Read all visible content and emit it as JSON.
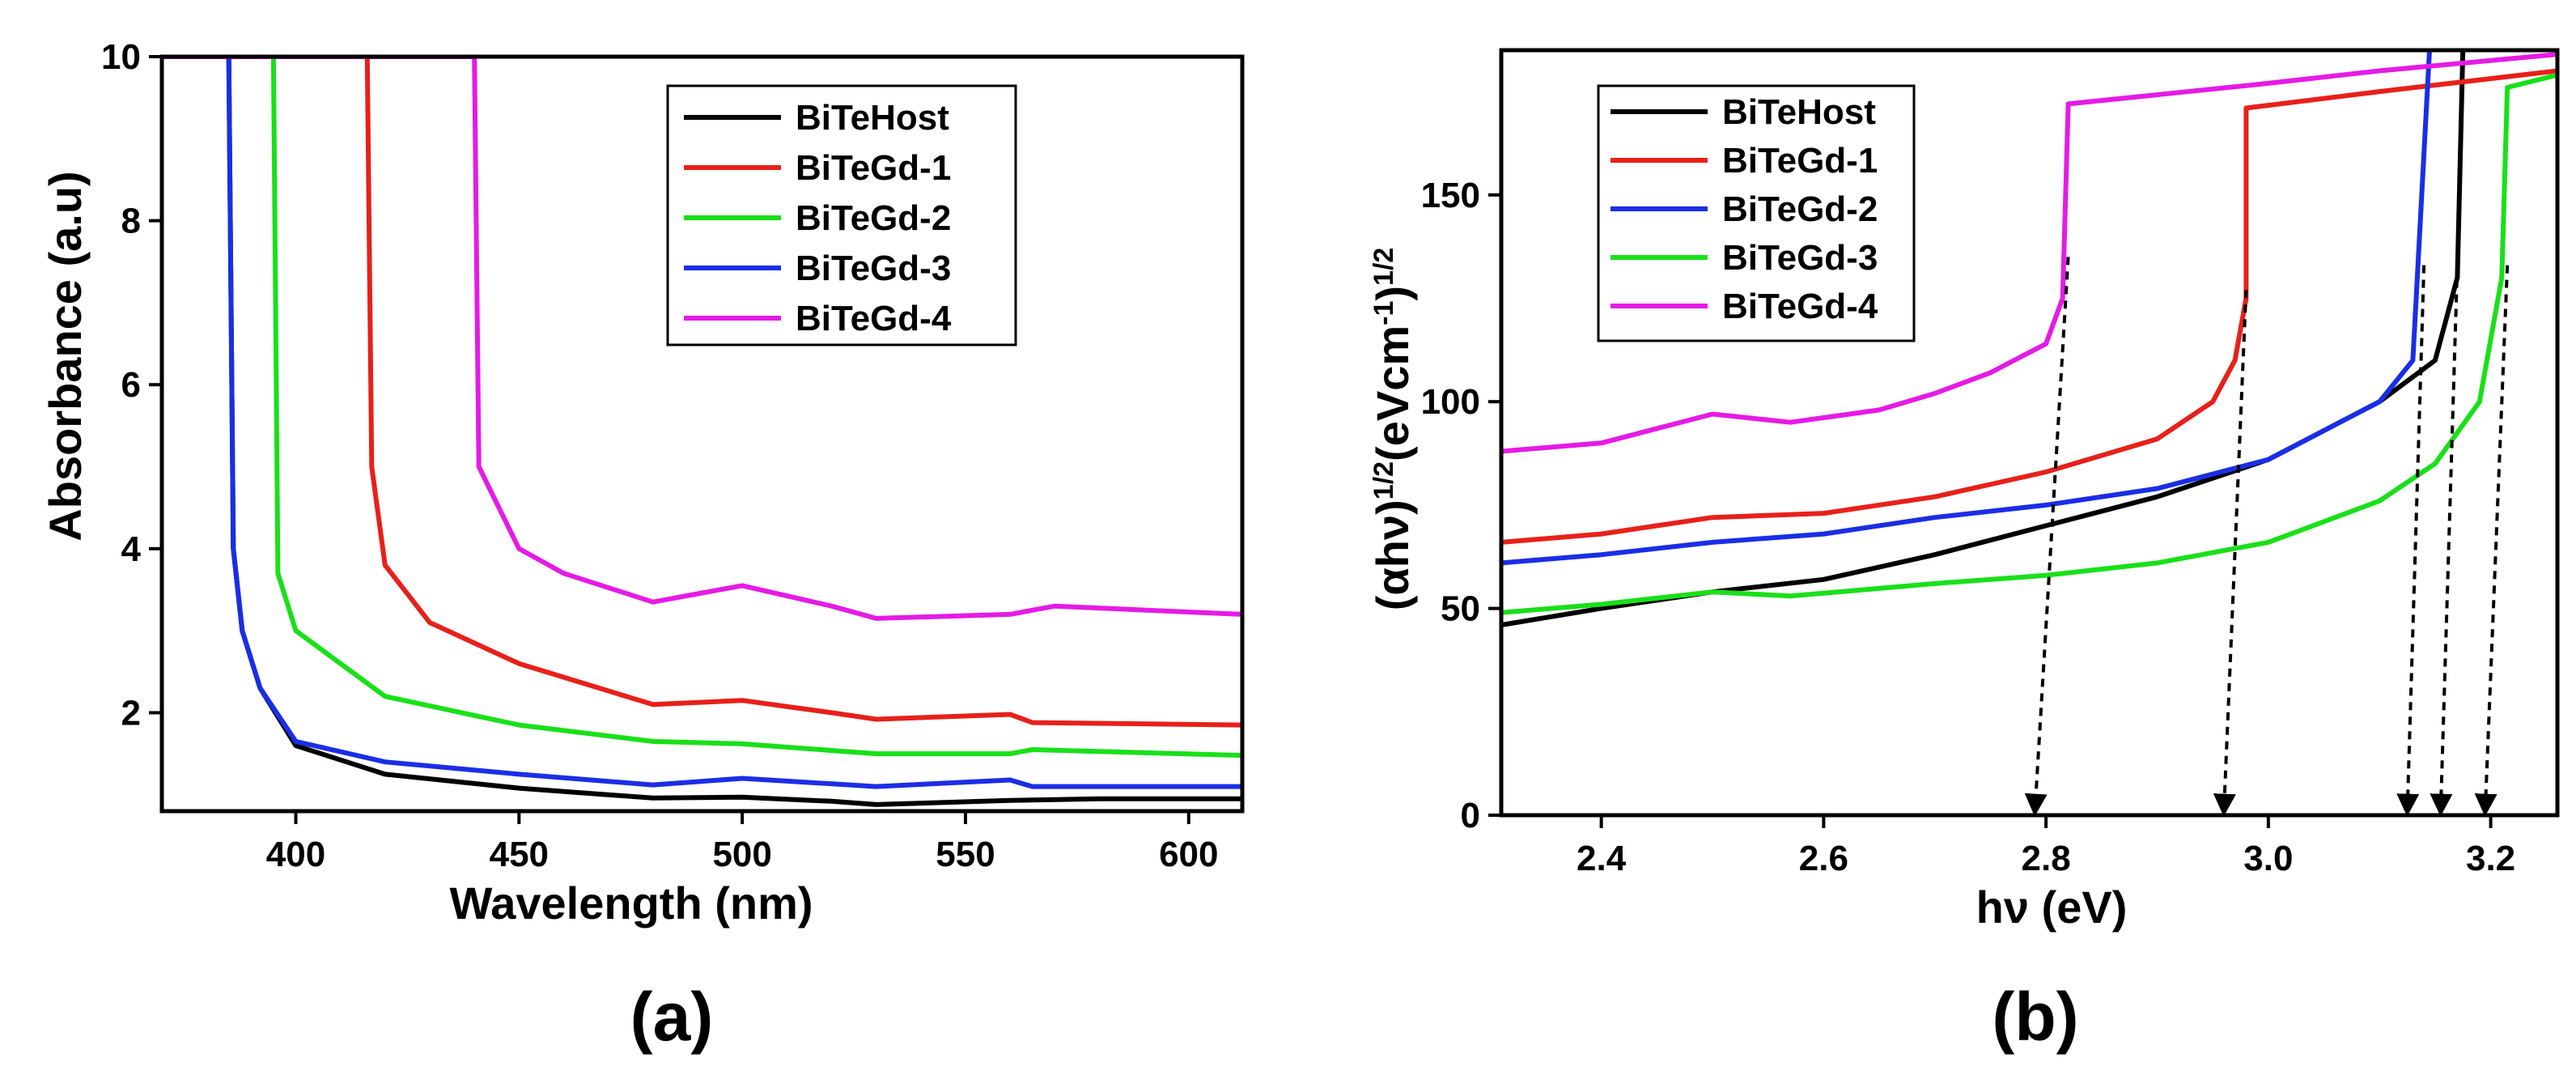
{
  "chart_data": [
    {
      "type": "line",
      "panel_label": "(a)",
      "xlabel": "Wavelength (nm)",
      "ylabel": "Absorbance (a.u)",
      "xlim": [
        370,
        612
      ],
      "ylim": [
        0.8,
        10
      ],
      "x_ticks": [
        400,
        450,
        500,
        550,
        600
      ],
      "y_ticks": [
        2,
        4,
        6,
        8,
        10
      ],
      "legend_position": "top-right",
      "series": [
        {
          "name": "BiTeHost",
          "color": "#000000",
          "points": [
            [
              385,
              10
            ],
            [
              386,
              4
            ],
            [
              388,
              3
            ],
            [
              392,
              2.3
            ],
            [
              400,
              1.6
            ],
            [
              420,
              1.25
            ],
            [
              450,
              1.08
            ],
            [
              480,
              0.96
            ],
            [
              500,
              0.97
            ],
            [
              520,
              0.92
            ],
            [
              530,
              0.88
            ],
            [
              560,
              0.93
            ],
            [
              580,
              0.95
            ],
            [
              612,
              0.95
            ]
          ]
        },
        {
          "name": "BiTeGd-1",
          "color": "#e8201a",
          "points": [
            [
              370,
              10
            ],
            [
              416,
              10
            ],
            [
              417,
              5
            ],
            [
              420,
              3.8
            ],
            [
              430,
              3.1
            ],
            [
              450,
              2.6
            ],
            [
              480,
              2.1
            ],
            [
              500,
              2.15
            ],
            [
              520,
              2.0
            ],
            [
              530,
              1.92
            ],
            [
              560,
              1.98
            ],
            [
              565,
              1.88
            ],
            [
              612,
              1.85
            ]
          ]
        },
        {
          "name": "BiTeGd-2",
          "color": "#19e019",
          "points": [
            [
              370,
              10
            ],
            [
              395,
              10
            ],
            [
              396,
              3.7
            ],
            [
              400,
              3.0
            ],
            [
              420,
              2.2
            ],
            [
              450,
              1.85
            ],
            [
              480,
              1.65
            ],
            [
              500,
              1.62
            ],
            [
              530,
              1.5
            ],
            [
              560,
              1.5
            ],
            [
              565,
              1.55
            ],
            [
              612,
              1.48
            ]
          ]
        },
        {
          "name": "BiTeGd-3",
          "color": "#1a2ee6",
          "points": [
            [
              385,
              10
            ],
            [
              386,
              4
            ],
            [
              388,
              3
            ],
            [
              392,
              2.3
            ],
            [
              400,
              1.65
            ],
            [
              420,
              1.4
            ],
            [
              450,
              1.25
            ],
            [
              480,
              1.12
            ],
            [
              500,
              1.2
            ],
            [
              530,
              1.1
            ],
            [
              560,
              1.18
            ],
            [
              565,
              1.1
            ],
            [
              612,
              1.1
            ]
          ]
        },
        {
          "name": "BiTeGd-4",
          "color": "#e51be5",
          "points": [
            [
              370,
              10
            ],
            [
              440,
              10
            ],
            [
              441,
              5
            ],
            [
              450,
              4.0
            ],
            [
              460,
              3.7
            ],
            [
              480,
              3.35
            ],
            [
              490,
              3.45
            ],
            [
              500,
              3.55
            ],
            [
              520,
              3.3
            ],
            [
              530,
              3.15
            ],
            [
              560,
              3.2
            ],
            [
              570,
              3.3
            ],
            [
              612,
              3.2
            ]
          ]
        }
      ]
    },
    {
      "type": "line",
      "panel_label": "(b)",
      "xlabel": "hν (eV)",
      "ylabel_base": "(αhν)",
      "ylabel_exp1": "1/2",
      "ylabel_mid": "(eVcm",
      "ylabel_exp2": "-1",
      "ylabel_close": ")",
      "ylabel_exp3": "1/2",
      "xlim": [
        2.31,
        3.26
      ],
      "ylim": [
        0,
        185
      ],
      "x_ticks": [
        "2.4",
        "2.6",
        "2.8",
        "3.0",
        "3.2"
      ],
      "y_ticks": [
        "0",
        "50",
        "100",
        "150"
      ],
      "legend_position": "top-left",
      "series": [
        {
          "name": "BiTeHost",
          "color": "#000000",
          "points": [
            [
              2.31,
              46
            ],
            [
              2.4,
              50
            ],
            [
              2.5,
              54
            ],
            [
              2.6,
              57
            ],
            [
              2.7,
              63
            ],
            [
              2.8,
              70
            ],
            [
              2.9,
              77
            ],
            [
              3.0,
              86
            ],
            [
              3.1,
              100
            ],
            [
              3.15,
              110
            ],
            [
              3.17,
              130
            ],
            [
              3.175,
              185
            ]
          ]
        },
        {
          "name": "BiTeGd-1",
          "color": "#e8201a",
          "points": [
            [
              2.31,
              66
            ],
            [
              2.4,
              68
            ],
            [
              2.5,
              72
            ],
            [
              2.6,
              73
            ],
            [
              2.7,
              77
            ],
            [
              2.8,
              83
            ],
            [
              2.9,
              91
            ],
            [
              2.95,
              100
            ],
            [
              2.97,
              110
            ],
            [
              2.98,
              125
            ],
            [
              2.98,
              171
            ],
            [
              3.1,
              175
            ],
            [
              3.26,
              180
            ]
          ]
        },
        {
          "name": "BiTeGd-2",
          "color": "#1a2ee6",
          "points": [
            [
              2.31,
              61
            ],
            [
              2.4,
              63
            ],
            [
              2.5,
              66
            ],
            [
              2.6,
              68
            ],
            [
              2.7,
              72
            ],
            [
              2.8,
              75
            ],
            [
              2.9,
              79
            ],
            [
              3.0,
              86
            ],
            [
              3.1,
              100
            ],
            [
              3.13,
              110
            ],
            [
              3.145,
              185
            ]
          ]
        },
        {
          "name": "BiTeGd-3",
          "color": "#19e019",
          "points": [
            [
              2.31,
              49
            ],
            [
              2.4,
              51
            ],
            [
              2.5,
              54
            ],
            [
              2.57,
              53
            ],
            [
              2.7,
              56
            ],
            [
              2.8,
              58
            ],
            [
              2.9,
              61
            ],
            [
              3.0,
              66
            ],
            [
              3.1,
              76
            ],
            [
              3.15,
              85
            ],
            [
              3.19,
              100
            ],
            [
              3.21,
              130
            ],
            [
              3.215,
              176
            ],
            [
              3.26,
              179
            ]
          ]
        },
        {
          "name": "BiTeGd-4",
          "color": "#e51be5",
          "points": [
            [
              2.31,
              88
            ],
            [
              2.4,
              90
            ],
            [
              2.5,
              97
            ],
            [
              2.57,
              95
            ],
            [
              2.65,
              98
            ],
            [
              2.7,
              102
            ],
            [
              2.75,
              107
            ],
            [
              2.8,
              114
            ],
            [
              2.815,
              125
            ],
            [
              2.82,
              172
            ],
            [
              3.0,
              177
            ],
            [
              3.1,
              180
            ],
            [
              3.26,
              184
            ]
          ]
        }
      ],
      "tangent_arrows": [
        {
          "from": [
            2.82,
            135
          ],
          "to": [
            2.79,
            0
          ]
        },
        {
          "from": [
            2.98,
            127
          ],
          "to": [
            2.96,
            0
          ]
        },
        {
          "from": [
            3.14,
            133
          ],
          "to": [
            3.125,
            0
          ]
        },
        {
          "from": [
            3.17,
            133
          ],
          "to": [
            3.155,
            0
          ]
        },
        {
          "from": [
            3.215,
            133
          ],
          "to": [
            3.195,
            0
          ]
        }
      ]
    }
  ]
}
